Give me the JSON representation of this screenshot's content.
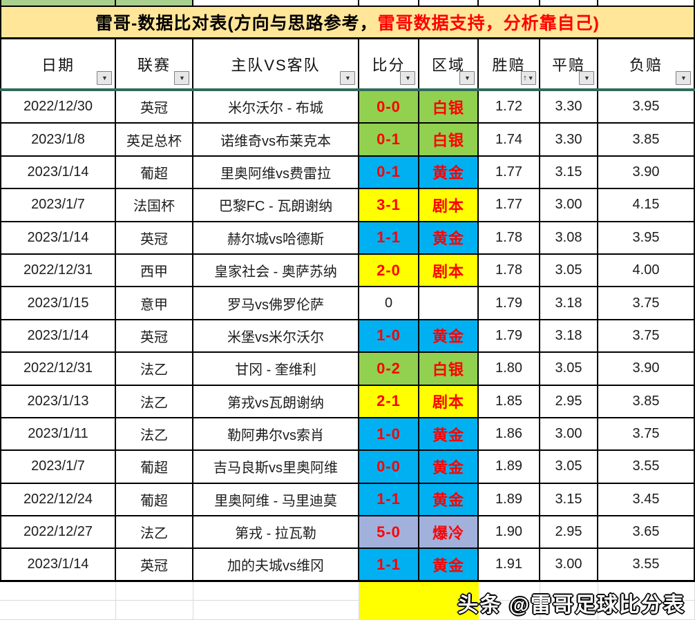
{
  "title": {
    "black_text": "雷哥-数据比对表(方向与思路参考，",
    "red_text": "雷哥数据支持，分析靠自己)"
  },
  "header": {
    "filter_icon": "▼",
    "columns": [
      {
        "label": "日期",
        "sort": ""
      },
      {
        "label": "联赛",
        "sort": ""
      },
      {
        "label": "主队VS客队",
        "sort": ""
      },
      {
        "label": "比分",
        "sort": ""
      },
      {
        "label": "区域",
        "sort": ""
      },
      {
        "label": "胜赔",
        "sort": "↑"
      },
      {
        "label": "平赔",
        "sort": ""
      },
      {
        "label": "负赔",
        "sort": ""
      }
    ]
  },
  "rows": [
    {
      "date": "2022/12/30",
      "league": "英冠",
      "match": "米尔沃尔 - 布城",
      "score": "0-0",
      "zone": "白银",
      "band": "green",
      "win": "1.72",
      "draw": "3.30",
      "lose": "3.95"
    },
    {
      "date": "2023/1/8",
      "league": "英足总杯",
      "match": "诺维奇vs布莱克本",
      "score": "0-1",
      "zone": "白银",
      "band": "green",
      "win": "1.74",
      "draw": "3.30",
      "lose": "3.85"
    },
    {
      "date": "2023/1/14",
      "league": "葡超",
      "match": "里奥阿维vs费雷拉",
      "score": "0-1",
      "zone": "黄金",
      "band": "blue",
      "win": "1.77",
      "draw": "3.15",
      "lose": "3.90"
    },
    {
      "date": "2023/1/7",
      "league": "法国杯",
      "match": "巴黎FC - 瓦朗谢纳",
      "score": "3-1",
      "zone": "剧本",
      "band": "yellow",
      "win": "1.77",
      "draw": "3.00",
      "lose": "4.15"
    },
    {
      "date": "2023/1/14",
      "league": "英冠",
      "match": "赫尔城vs哈德斯",
      "score": "1-1",
      "zone": "黄金",
      "band": "blue",
      "win": "1.78",
      "draw": "3.08",
      "lose": "3.95"
    },
    {
      "date": "2022/12/31",
      "league": "西甲",
      "match": "皇家社会 - 奥萨苏纳",
      "score": "2-0",
      "zone": "剧本",
      "band": "yellow",
      "win": "1.78",
      "draw": "3.05",
      "lose": "4.00"
    },
    {
      "date": "2023/1/15",
      "league": "意甲",
      "match": "罗马vs佛罗伦萨",
      "score": "0",
      "zone": "",
      "band": "none",
      "win": "1.79",
      "draw": "3.18",
      "lose": "3.75"
    },
    {
      "date": "2023/1/14",
      "league": "英冠",
      "match": "米堡vs米尔沃尔",
      "score": "1-0",
      "zone": "黄金",
      "band": "blue",
      "win": "1.79",
      "draw": "3.18",
      "lose": "3.75"
    },
    {
      "date": "2022/12/31",
      "league": "法乙",
      "match": "甘冈 - 奎维利",
      "score": "0-2",
      "zone": "白银",
      "band": "green",
      "win": "1.80",
      "draw": "3.05",
      "lose": "3.90"
    },
    {
      "date": "2023/1/13",
      "league": "法乙",
      "match": "第戎vs瓦朗谢纳",
      "score": "2-1",
      "zone": "剧本",
      "band": "yellow",
      "win": "1.85",
      "draw": "2.95",
      "lose": "3.85"
    },
    {
      "date": "2023/1/11",
      "league": "法乙",
      "match": "勒阿弗尔vs索肖",
      "score": "1-0",
      "zone": "黄金",
      "band": "blue",
      "win": "1.86",
      "draw": "3.00",
      "lose": "3.75"
    },
    {
      "date": "2023/1/7",
      "league": "葡超",
      "match": "吉马良斯vs里奥阿维",
      "score": "0-0",
      "zone": "黄金",
      "band": "blue",
      "win": "1.89",
      "draw": "3.05",
      "lose": "3.55"
    },
    {
      "date": "2022/12/24",
      "league": "葡超",
      "match": "里奥阿维 - 马里迪莫",
      "score": "1-1",
      "zone": "黄金",
      "band": "blue",
      "win": "1.89",
      "draw": "3.15",
      "lose": "3.45"
    },
    {
      "date": "2022/12/27",
      "league": "法乙",
      "match": "第戎 - 拉瓦勒",
      "score": "5-0",
      "zone": "爆冷",
      "band": "purple",
      "win": "1.90",
      "draw": "2.95",
      "lose": "3.65"
    },
    {
      "date": "2023/1/14",
      "league": "英冠",
      "match": "加的夫城vs维冈",
      "score": "1-1",
      "zone": "黄金",
      "band": "blue",
      "win": "1.91",
      "draw": "3.00",
      "lose": "3.55"
    }
  ],
  "footer": {
    "watermark": "头条 @雷哥足球比分表"
  },
  "colors": {
    "green": "#92D050",
    "blue": "#00B0F0",
    "yellow": "#FFFF00",
    "purple": "#A2B1DC",
    "title_bg": "#FFE699",
    "strip_green": "#A9D08E",
    "red_text": "#FF0000",
    "header_underline": "#2F6B5A",
    "grid_line": "#D9D9D9"
  }
}
